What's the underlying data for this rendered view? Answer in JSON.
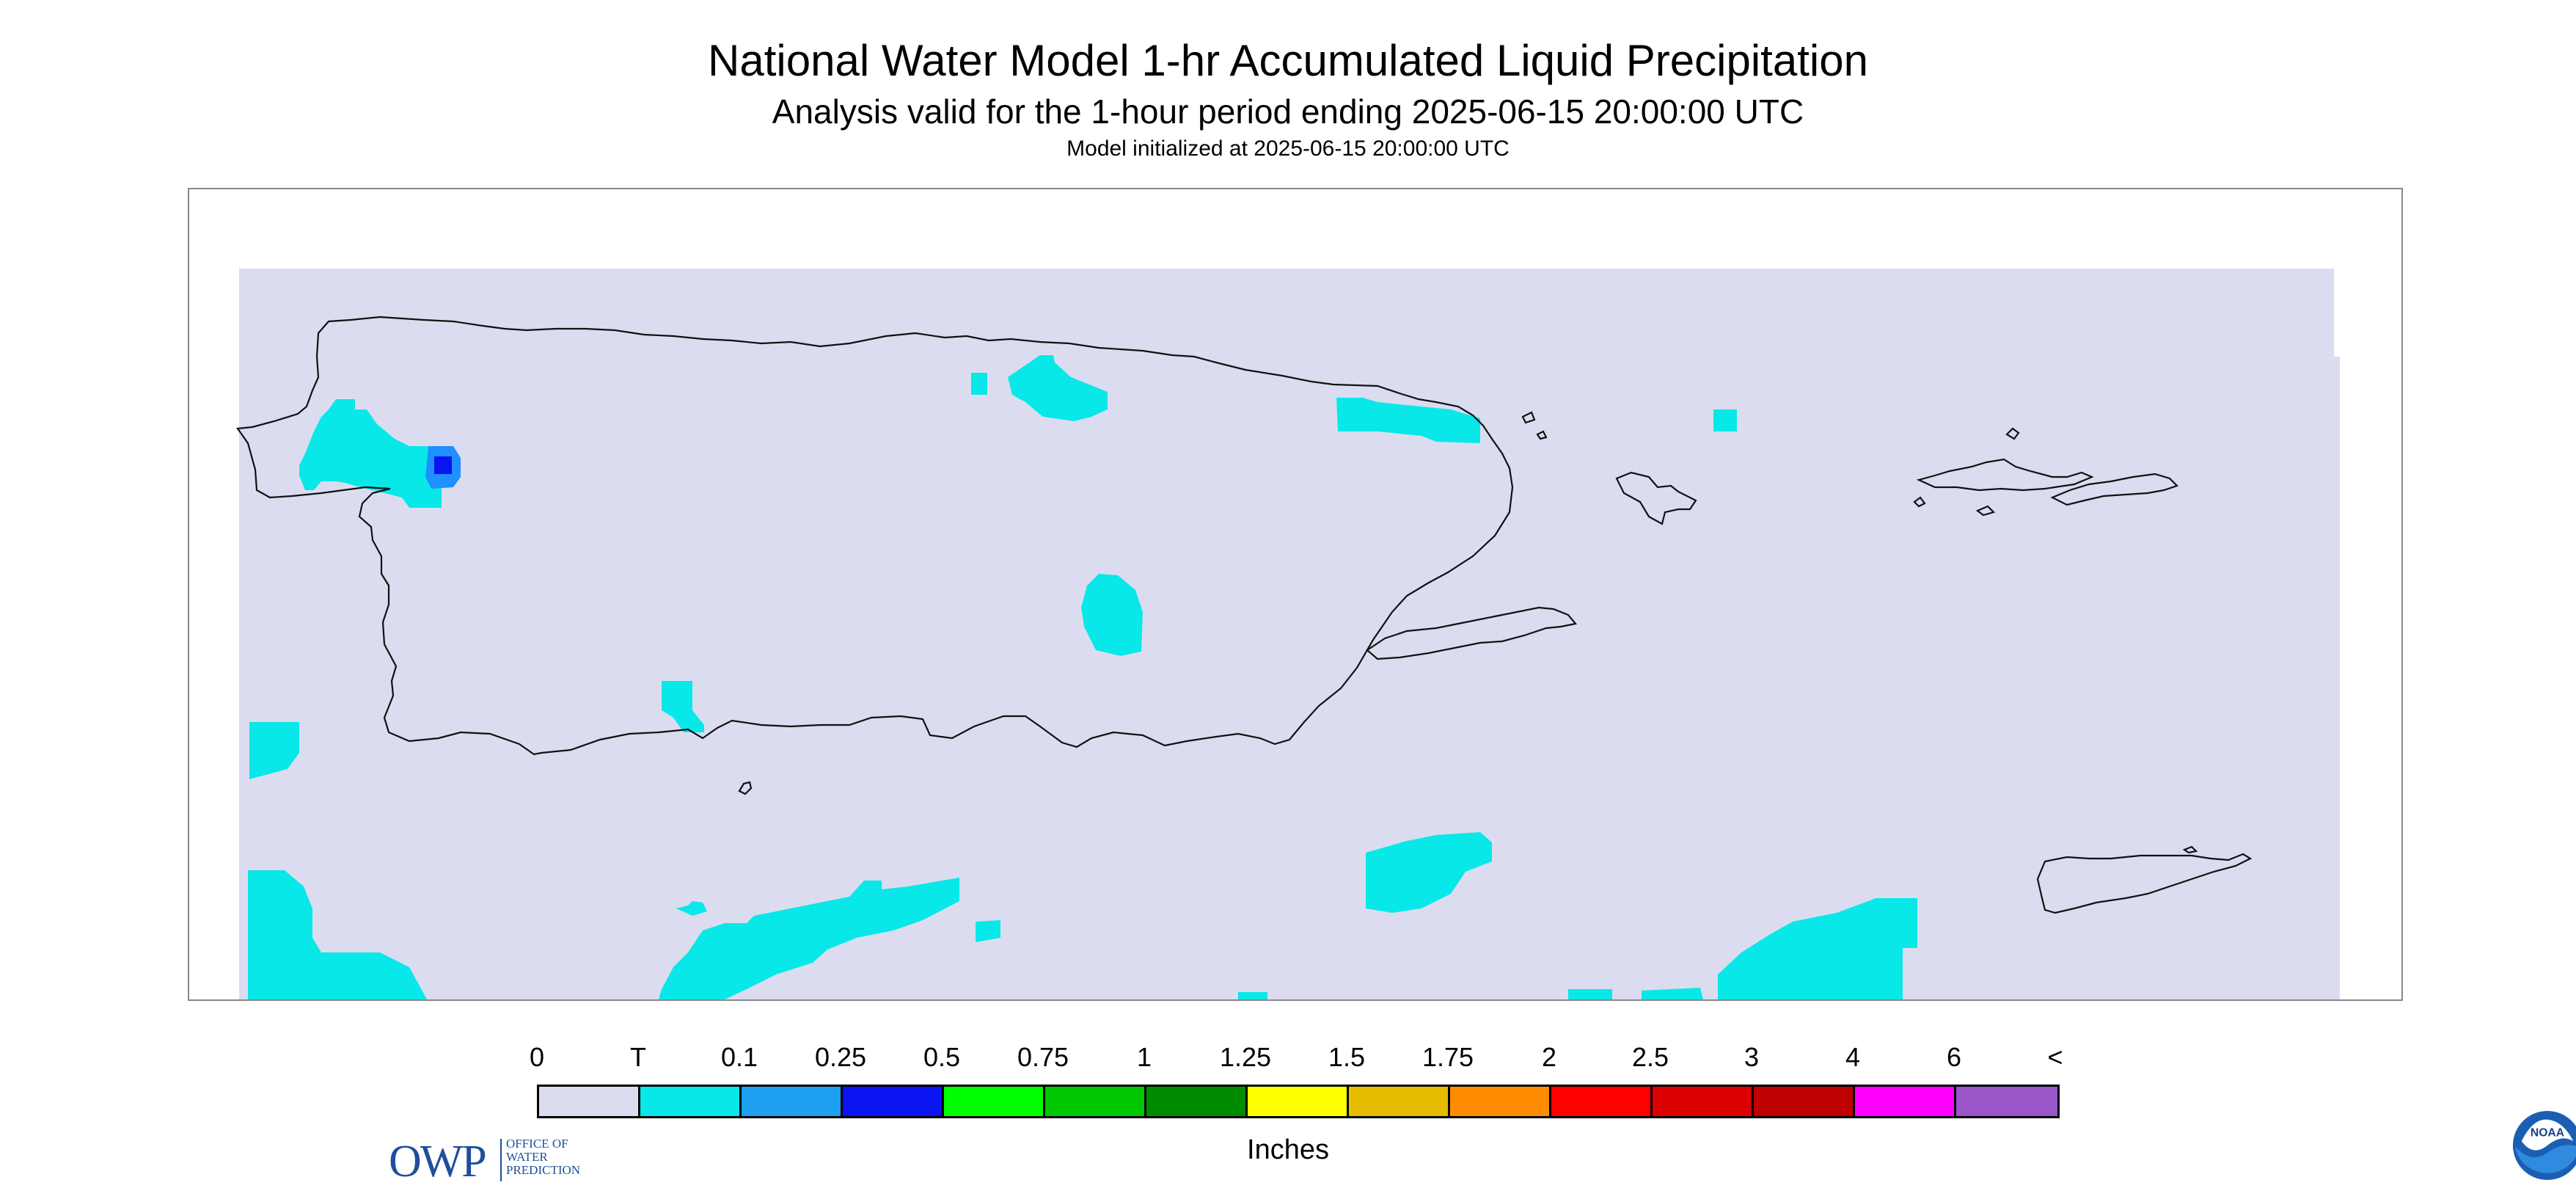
{
  "header": {
    "title": "National Water Model 1-hr Accumulated Liquid Precipitation",
    "subtitle": "Analysis valid for the 1-hour period ending 2025-06-15 20:00:00 UTC",
    "init": "Model initialized at 2025-06-15 20:00:00 UTC"
  },
  "map": {
    "background_color": "#dcdcf0",
    "region": "Puerto Rico and U.S. Virgin Islands",
    "precip_cells_trace_color": "#08e8e8",
    "precip_cells_light_color": "#1e90ff",
    "precip_cells_medium_color": "#0a14f0"
  },
  "logos": {
    "owp_letters": "OWP",
    "owp_name": [
      "Office of",
      "Water",
      "Prediction"
    ],
    "noaa_text": "NOAA"
  },
  "legend": {
    "ticks": [
      "0",
      "T",
      "0.1",
      "0.25",
      "0.5",
      "0.75",
      "1",
      "1.25",
      "1.5",
      "1.75",
      "2",
      "2.5",
      "3",
      "4",
      "6",
      "<"
    ],
    "colors": [
      "#dcdcf0",
      "#08e8e8",
      "#1ea0f0",
      "#0a14f0",
      "#00ff00",
      "#00c800",
      "#008c00",
      "#ffff00",
      "#e6bc00",
      "#ff8c00",
      "#ff0000",
      "#dc0000",
      "#be0000",
      "#ff00ff",
      "#9a55c8"
    ],
    "units": "Inches"
  }
}
